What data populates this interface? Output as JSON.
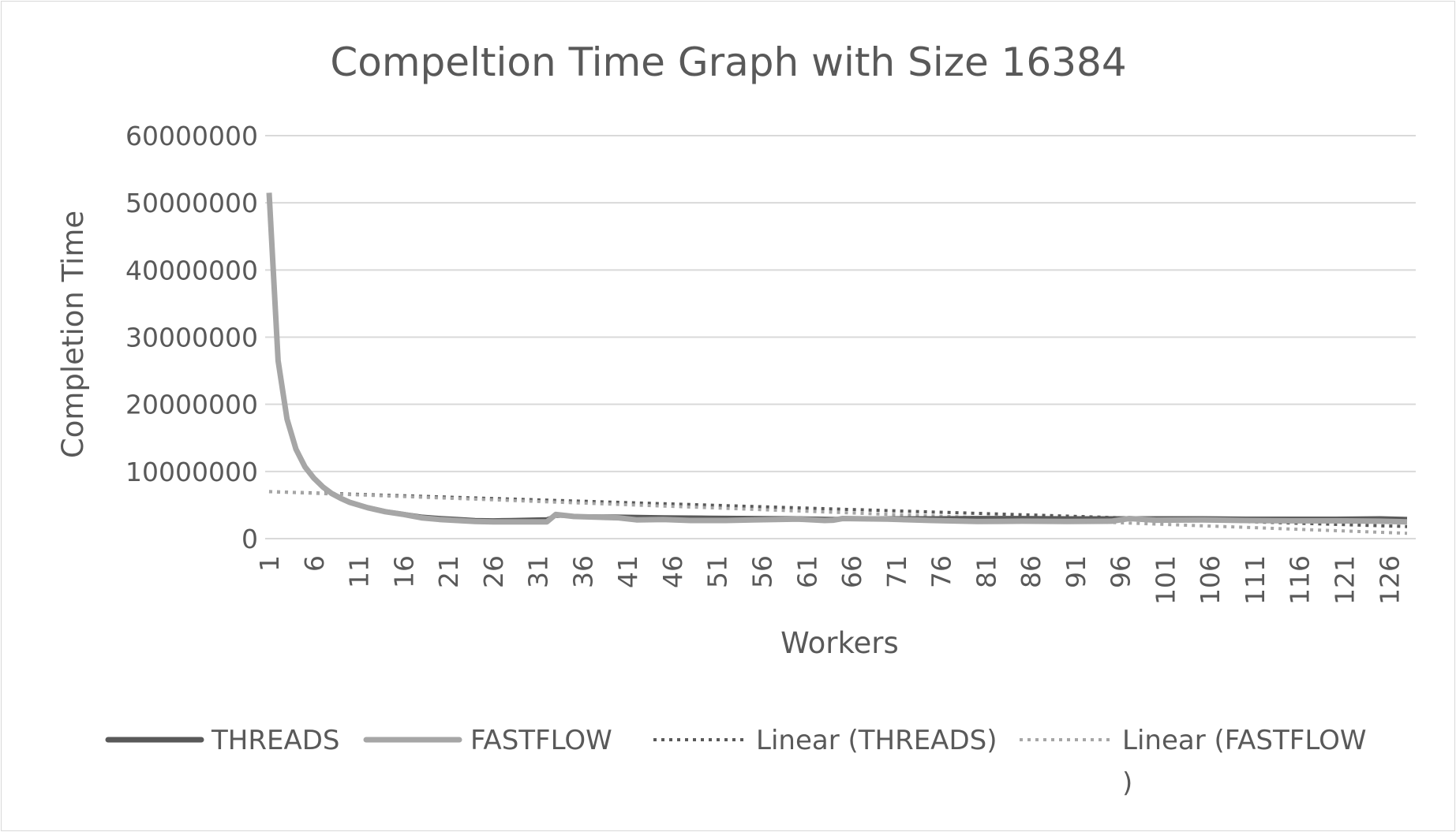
{
  "chart_data": {
    "type": "line",
    "title": "Compeltion Time Graph with Size 16384",
    "xlabel": "Workers",
    "ylabel": "Completion Time",
    "x_range": [
      1,
      128
    ],
    "x_tick_labels": [
      "1",
      "6",
      "11",
      "16",
      "21",
      "26",
      "31",
      "36",
      "41",
      "46",
      "51",
      "56",
      "61",
      "66",
      "71",
      "76",
      "81",
      "86",
      "91",
      "96",
      "101",
      "106",
      "111",
      "116",
      "121",
      "126"
    ],
    "y_tick_labels": [
      "0",
      "10000000",
      "20000000",
      "30000000",
      "40000000",
      "50000000",
      "60000000"
    ],
    "ylim": [
      0,
      60000000
    ],
    "grid": "horizontal",
    "legend_position": "bottom",
    "series": [
      {
        "name": "THREADS",
        "style": "solid",
        "color": "#595959",
        "points": [
          [
            1,
            51000000
          ],
          [
            2,
            26000000
          ],
          [
            3,
            17500000
          ],
          [
            4,
            13200000
          ],
          [
            5,
            10600000
          ],
          [
            6,
            9000000
          ],
          [
            7,
            7800000
          ],
          [
            8,
            6800000
          ],
          [
            9,
            6100000
          ],
          [
            10,
            5500000
          ],
          [
            12,
            4700000
          ],
          [
            14,
            4100000
          ],
          [
            16,
            3700000
          ],
          [
            18,
            3300000
          ],
          [
            20,
            3100000
          ],
          [
            22,
            2950000
          ],
          [
            24,
            2800000
          ],
          [
            26,
            2750000
          ],
          [
            28,
            2800000
          ],
          [
            30,
            2850000
          ],
          [
            32,
            2900000
          ],
          [
            33,
            3400000
          ],
          [
            35,
            3350000
          ],
          [
            40,
            3300000
          ],
          [
            45,
            3200000
          ],
          [
            50,
            3150000
          ],
          [
            55,
            3100000
          ],
          [
            60,
            3050000
          ],
          [
            64,
            2950000
          ],
          [
            65,
            3000000
          ],
          [
            70,
            3050000
          ],
          [
            75,
            3050000
          ],
          [
            80,
            3100000
          ],
          [
            85,
            3100000
          ],
          [
            90,
            3050000
          ],
          [
            95,
            3050000
          ],
          [
            100,
            3050000
          ],
          [
            105,
            3050000
          ],
          [
            110,
            3000000
          ],
          [
            115,
            3000000
          ],
          [
            120,
            3000000
          ],
          [
            125,
            3050000
          ],
          [
            128,
            2950000
          ]
        ]
      },
      {
        "name": "FASTFLOW",
        "style": "solid",
        "color": "#a6a6a6",
        "points": [
          [
            1,
            51500000
          ],
          [
            2,
            26500000
          ],
          [
            3,
            17800000
          ],
          [
            4,
            13300000
          ],
          [
            5,
            10700000
          ],
          [
            6,
            9000000
          ],
          [
            7,
            7700000
          ],
          [
            8,
            6700000
          ],
          [
            9,
            6000000
          ],
          [
            10,
            5400000
          ],
          [
            12,
            4600000
          ],
          [
            14,
            4000000
          ],
          [
            16,
            3600000
          ],
          [
            18,
            3100000
          ],
          [
            20,
            2850000
          ],
          [
            22,
            2700000
          ],
          [
            24,
            2550000
          ],
          [
            26,
            2500000
          ],
          [
            28,
            2500000
          ],
          [
            30,
            2500000
          ],
          [
            32,
            2500000
          ],
          [
            33,
            3600000
          ],
          [
            35,
            3300000
          ],
          [
            40,
            3100000
          ],
          [
            42,
            2800000
          ],
          [
            45,
            2850000
          ],
          [
            48,
            2700000
          ],
          [
            52,
            2700000
          ],
          [
            55,
            2800000
          ],
          [
            60,
            2900000
          ],
          [
            63,
            2700000
          ],
          [
            64,
            2750000
          ],
          [
            65,
            3000000
          ],
          [
            70,
            2900000
          ],
          [
            75,
            2700000
          ],
          [
            80,
            2550000
          ],
          [
            85,
            2600000
          ],
          [
            90,
            2550000
          ],
          [
            95,
            2600000
          ],
          [
            97,
            3000000
          ],
          [
            100,
            2750000
          ],
          [
            105,
            2800000
          ],
          [
            110,
            2700000
          ],
          [
            115,
            2650000
          ],
          [
            120,
            2650000
          ],
          [
            125,
            2600000
          ],
          [
            128,
            2500000
          ]
        ]
      },
      {
        "name": "Linear (THREADS)",
        "style": "dotted",
        "color": "#595959",
        "points": [
          [
            1,
            7000000
          ],
          [
            128,
            1800000
          ]
        ]
      },
      {
        "name": "Linear (FASTFLOW",
        "name_line2": ")",
        "style": "dotted",
        "color": "#a6a6a6",
        "points": [
          [
            1,
            7000000
          ],
          [
            128,
            800000
          ]
        ]
      }
    ]
  }
}
